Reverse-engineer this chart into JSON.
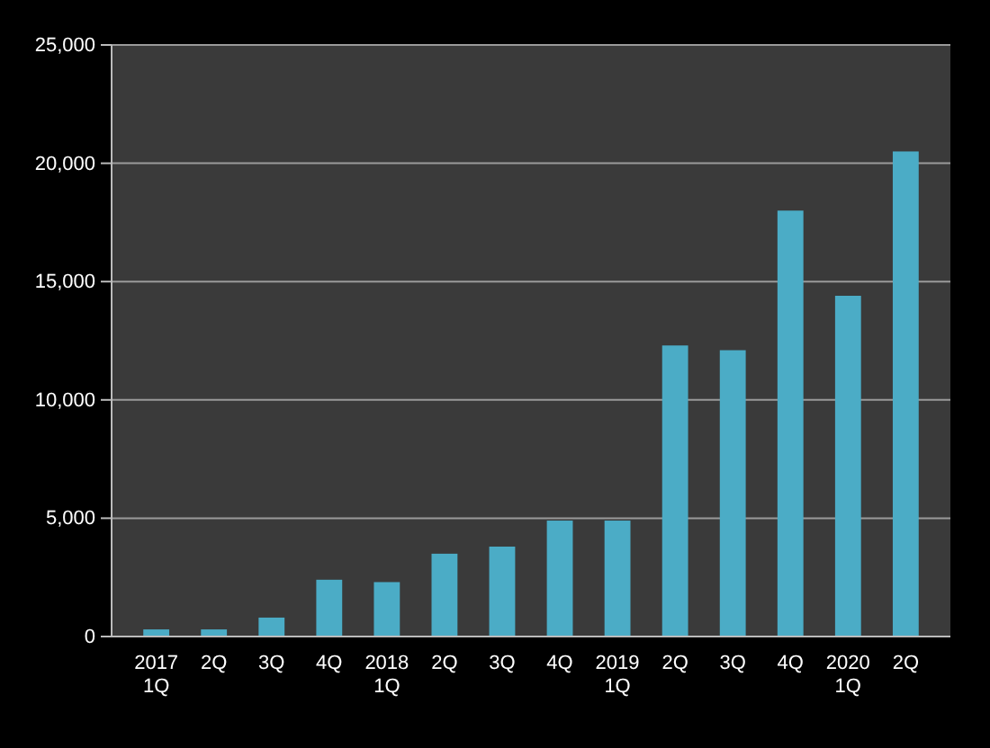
{
  "chart_data": {
    "type": "bar",
    "categories": [
      "2017\n1Q",
      "2Q",
      "3Q",
      "4Q",
      "2018\n1Q",
      "2Q",
      "3Q",
      "4Q",
      "2019\n1Q",
      "2Q",
      "3Q",
      "4Q",
      "2020\n1Q",
      "2Q"
    ],
    "values": [
      300,
      300,
      800,
      2400,
      2300,
      3500,
      3800,
      4900,
      4900,
      12300,
      12100,
      18000,
      14400,
      20500
    ],
    "color": "#4bacc6",
    "ylim": [
      0,
      25000
    ],
    "yticks": [
      {
        "value": 0,
        "label": "0"
      },
      {
        "value": 5000,
        "label": "5,000"
      },
      {
        "value": 10000,
        "label": "10,000"
      },
      {
        "value": 15000,
        "label": "15,000"
      },
      {
        "value": 20000,
        "label": "20,000"
      },
      {
        "value": 25000,
        "label": "25,000"
      }
    ],
    "grid": "y"
  }
}
